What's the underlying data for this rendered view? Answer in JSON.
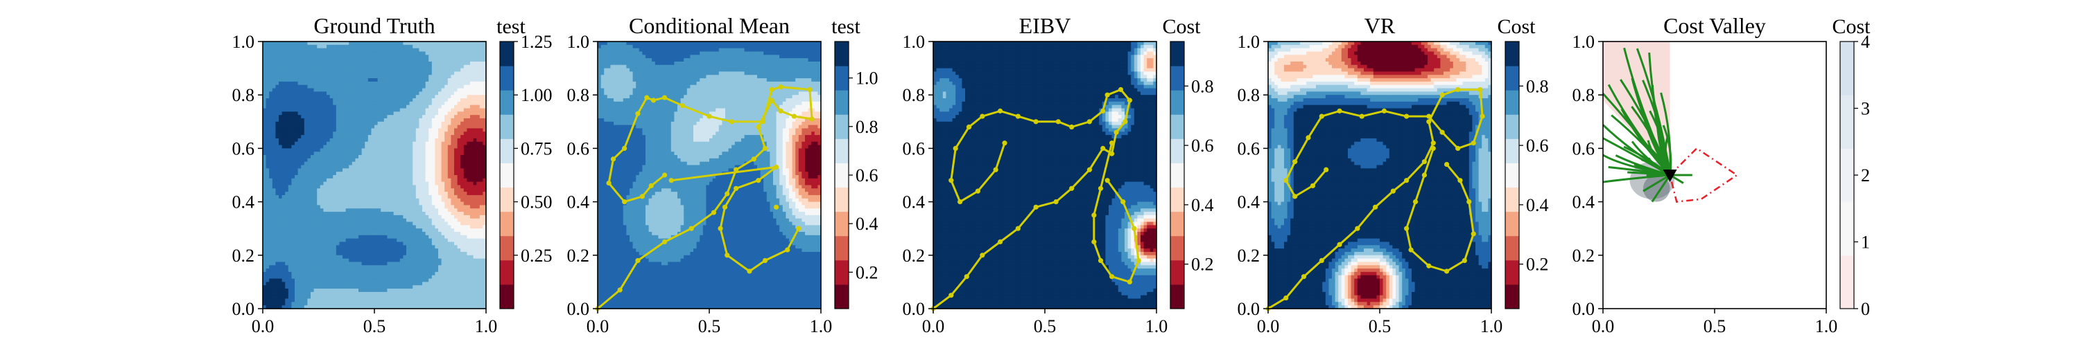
{
  "chart_data": [
    {
      "type": "heatmap",
      "title": "Ground Truth",
      "xlim": [
        0,
        1
      ],
      "ylim": [
        0,
        1
      ],
      "xticks": [
        "0.0",
        "0.5",
        "1.0"
      ],
      "yticks": [
        "0.0",
        "0.2",
        "0.4",
        "0.6",
        "0.8",
        "1.0"
      ],
      "colorbar": {
        "label": "test",
        "range": [
          0.0,
          1.25
        ],
        "ticks": [
          "0.25",
          "0.50",
          "0.75",
          "1.00",
          "1.25"
        ],
        "colors": [
          "#67001f",
          "#b2182b",
          "#d6604d",
          "#f4a582",
          "#fddbc7",
          "#f7f7f7",
          "#d1e5f0",
          "#92c5de",
          "#4393c3",
          "#2166ac",
          "#053061"
        ]
      },
      "field": {
        "base": 0.88,
        "bumps": [
          {
            "x": 0.95,
            "y": 0.55,
            "sx": 0.13,
            "sy": 0.18,
            "a": -0.85
          },
          {
            "x": 0.2,
            "y": 0.68,
            "sx": 0.14,
            "sy": 0.1,
            "a": 0.2
          },
          {
            "x": 0.5,
            "y": 0.22,
            "sx": 0.25,
            "sy": 0.08,
            "a": 0.18
          },
          {
            "x": 0.08,
            "y": 0.55,
            "sx": 0.08,
            "sy": 0.3,
            "a": 0.15
          },
          {
            "x": 0.52,
            "y": 0.86,
            "sx": 0.22,
            "sy": 0.08,
            "a": 0.14
          },
          {
            "x": 0.05,
            "y": 0.05,
            "sx": 0.06,
            "sy": 0.06,
            "a": 0.35
          }
        ]
      },
      "path": []
    },
    {
      "type": "heatmap",
      "title": "Conditional Mean",
      "xlim": [
        0,
        1
      ],
      "ylim": [
        0,
        1
      ],
      "xticks": [
        "0.0",
        "0.5",
        "1.0"
      ],
      "yticks": [
        "0.0",
        "0.2",
        "0.4",
        "0.6",
        "0.8",
        "1.0"
      ],
      "colorbar": {
        "label": "test",
        "range": [
          0.05,
          1.15
        ],
        "ticks": [
          "0.2",
          "0.4",
          "0.6",
          "0.8",
          "1.0"
        ],
        "colors": [
          "#67001f",
          "#b2182b",
          "#d6604d",
          "#f4a582",
          "#fddbc7",
          "#f7f7f7",
          "#d1e5f0",
          "#92c5de",
          "#4393c3",
          "#2166ac",
          "#053061"
        ]
      },
      "field": {
        "base": 1.02,
        "bumps": [
          {
            "x": 0.97,
            "y": 0.55,
            "sx": 0.1,
            "sy": 0.15,
            "a": -0.95
          },
          {
            "x": 0.6,
            "y": 0.78,
            "sx": 0.22,
            "sy": 0.12,
            "a": -0.25
          },
          {
            "x": 0.3,
            "y": 0.35,
            "sx": 0.12,
            "sy": 0.12,
            "a": -0.22
          },
          {
            "x": 0.08,
            "y": 0.85,
            "sx": 0.1,
            "sy": 0.1,
            "a": -0.2
          },
          {
            "x": 0.45,
            "y": 0.62,
            "sx": 0.12,
            "sy": 0.08,
            "a": -0.18
          }
        ]
      },
      "path": [
        [
          0.0,
          0.0
        ],
        [
          0.1,
          0.07
        ],
        [
          0.18,
          0.18
        ],
        [
          0.3,
          0.25
        ],
        [
          0.42,
          0.3
        ],
        [
          0.52,
          0.36
        ],
        [
          0.58,
          0.43
        ],
        [
          0.62,
          0.52
        ],
        [
          0.7,
          0.56
        ],
        [
          0.75,
          0.6
        ],
        [
          0.72,
          0.68
        ],
        [
          0.78,
          0.78
        ],
        [
          0.82,
          0.74
        ],
        [
          0.88,
          0.72
        ],
        [
          0.96,
          0.71
        ],
        [
          0.95,
          0.82
        ],
        [
          0.82,
          0.83
        ],
        [
          0.78,
          0.82
        ],
        [
          0.74,
          0.7
        ],
        [
          0.6,
          0.7
        ],
        [
          0.5,
          0.72
        ],
        [
          0.38,
          0.76
        ],
        [
          0.3,
          0.79
        ],
        [
          0.25,
          0.78
        ],
        [
          0.22,
          0.79
        ],
        [
          0.18,
          0.73
        ],
        [
          0.12,
          0.6
        ],
        [
          0.07,
          0.56
        ],
        [
          0.05,
          0.47
        ],
        [
          0.12,
          0.4
        ],
        [
          0.2,
          0.42
        ],
        [
          0.24,
          0.46
        ],
        [
          0.3,
          0.5
        ],
        [
          0.33,
          0.48
        ],
        [
          0.8,
          0.53
        ],
        [
          0.72,
          0.48
        ],
        [
          0.62,
          0.45
        ],
        [
          0.57,
          0.38
        ],
        [
          0.55,
          0.3
        ],
        [
          0.58,
          0.2
        ],
        [
          0.68,
          0.14
        ],
        [
          0.75,
          0.18
        ],
        [
          0.85,
          0.22
        ],
        [
          0.9,
          0.3
        ],
        [
          0.8,
          0.38
        ]
      ],
      "path_breaks": [
        33,
        44
      ]
    },
    {
      "type": "heatmap",
      "title": "EIBV",
      "xlim": [
        0,
        1
      ],
      "ylim": [
        0,
        1
      ],
      "xticks": [
        "0.0",
        "0.5",
        "1.0"
      ],
      "yticks": [
        "0.0",
        "0.2",
        "0.4",
        "0.6",
        "0.8",
        "1.0"
      ],
      "colorbar": {
        "label": "Cost",
        "range": [
          0.05,
          0.95
        ],
        "ticks": [
          "0.2",
          "0.4",
          "0.6",
          "0.8"
        ],
        "colors": [
          "#67001f",
          "#b2182b",
          "#d6604d",
          "#f4a582",
          "#fddbc7",
          "#f7f7f7",
          "#d1e5f0",
          "#92c5de",
          "#4393c3",
          "#2166ac",
          "#053061"
        ]
      },
      "field": {
        "base": 0.95,
        "bumps": [
          {
            "x": 0.98,
            "y": 0.26,
            "sx": 0.06,
            "sy": 0.06,
            "a": -0.9
          },
          {
            "x": 0.97,
            "y": 0.92,
            "sx": 0.05,
            "sy": 0.06,
            "a": -0.6
          },
          {
            "x": 0.82,
            "y": 0.72,
            "sx": 0.04,
            "sy": 0.04,
            "a": -0.45
          },
          {
            "x": 0.05,
            "y": 0.8,
            "sx": 0.06,
            "sy": 0.07,
            "a": -0.25
          },
          {
            "x": 0.9,
            "y": 0.26,
            "sx": 0.12,
            "sy": 0.2,
            "a": -0.15
          }
        ]
      },
      "path": [
        [
          0.0,
          0.0
        ],
        [
          0.08,
          0.05
        ],
        [
          0.15,
          0.12
        ],
        [
          0.22,
          0.2
        ],
        [
          0.3,
          0.25
        ],
        [
          0.38,
          0.3
        ],
        [
          0.46,
          0.38
        ],
        [
          0.55,
          0.4
        ],
        [
          0.62,
          0.45
        ],
        [
          0.7,
          0.52
        ],
        [
          0.76,
          0.6
        ],
        [
          0.8,
          0.58
        ],
        [
          0.82,
          0.66
        ],
        [
          0.86,
          0.7
        ],
        [
          0.88,
          0.78
        ],
        [
          0.84,
          0.82
        ],
        [
          0.78,
          0.8
        ],
        [
          0.76,
          0.74
        ],
        [
          0.7,
          0.7
        ],
        [
          0.62,
          0.68
        ],
        [
          0.56,
          0.7
        ],
        [
          0.46,
          0.7
        ],
        [
          0.38,
          0.72
        ],
        [
          0.3,
          0.74
        ],
        [
          0.22,
          0.72
        ],
        [
          0.16,
          0.68
        ],
        [
          0.1,
          0.6
        ],
        [
          0.08,
          0.48
        ],
        [
          0.12,
          0.4
        ],
        [
          0.2,
          0.44
        ],
        [
          0.28,
          0.52
        ],
        [
          0.32,
          0.62
        ],
        [
          0.8,
          0.62
        ],
        [
          0.75,
          0.45
        ],
        [
          0.72,
          0.35
        ],
        [
          0.72,
          0.25
        ],
        [
          0.75,
          0.18
        ],
        [
          0.8,
          0.12
        ],
        [
          0.88,
          0.1
        ],
        [
          0.92,
          0.18
        ],
        [
          0.9,
          0.3
        ],
        [
          0.85,
          0.4
        ],
        [
          0.78,
          0.48
        ]
      ],
      "path_breaks": [
        32
      ]
    },
    {
      "type": "heatmap",
      "title": "VR",
      "xlim": [
        0,
        1
      ],
      "ylim": [
        0,
        1
      ],
      "xticks": [
        "0.0",
        "0.5",
        "1.0"
      ],
      "yticks": [
        "0.0",
        "0.2",
        "0.4",
        "0.6",
        "0.8",
        "1.0"
      ],
      "colorbar": {
        "label": "Cost",
        "range": [
          0.05,
          0.95
        ],
        "ticks": [
          "0.2",
          "0.4",
          "0.6",
          "0.8"
        ],
        "colors": [
          "#67001f",
          "#b2182b",
          "#d6604d",
          "#f4a582",
          "#fddbc7",
          "#f7f7f7",
          "#d1e5f0",
          "#92c5de",
          "#4393c3",
          "#2166ac",
          "#053061"
        ]
      },
      "field": {
        "base": 1.0,
        "bumps": [
          {
            "x": 0.45,
            "y": 0.08,
            "sx": 0.1,
            "sy": 0.09,
            "a": -1.0
          },
          {
            "x": 0.52,
            "y": 0.96,
            "sx": 0.18,
            "sy": 0.1,
            "a": -1.05
          },
          {
            "x": 0.1,
            "y": 0.9,
            "sx": 0.14,
            "sy": 0.08,
            "a": -0.55
          },
          {
            "x": 0.85,
            "y": 0.9,
            "sx": 0.16,
            "sy": 0.07,
            "a": -0.5
          },
          {
            "x": 0.05,
            "y": 0.5,
            "sx": 0.05,
            "sy": 0.2,
            "a": -0.35
          },
          {
            "x": 0.97,
            "y": 0.5,
            "sx": 0.05,
            "sy": 0.25,
            "a": -0.35
          },
          {
            "x": 0.45,
            "y": 0.58,
            "sx": 0.1,
            "sy": 0.06,
            "a": -0.2
          }
        ]
      },
      "path": [
        [
          0.0,
          0.0
        ],
        [
          0.08,
          0.04
        ],
        [
          0.16,
          0.12
        ],
        [
          0.24,
          0.18
        ],
        [
          0.32,
          0.24
        ],
        [
          0.4,
          0.3
        ],
        [
          0.48,
          0.38
        ],
        [
          0.56,
          0.44
        ],
        [
          0.62,
          0.48
        ],
        [
          0.7,
          0.55
        ],
        [
          0.74,
          0.62
        ],
        [
          0.72,
          0.7
        ],
        [
          0.78,
          0.8
        ],
        [
          0.85,
          0.82
        ],
        [
          0.95,
          0.82
        ],
        [
          0.96,
          0.72
        ],
        [
          0.92,
          0.62
        ],
        [
          0.85,
          0.6
        ],
        [
          0.78,
          0.66
        ],
        [
          0.72,
          0.72
        ],
        [
          0.62,
          0.72
        ],
        [
          0.52,
          0.74
        ],
        [
          0.42,
          0.72
        ],
        [
          0.32,
          0.74
        ],
        [
          0.24,
          0.72
        ],
        [
          0.18,
          0.64
        ],
        [
          0.12,
          0.55
        ],
        [
          0.08,
          0.48
        ],
        [
          0.12,
          0.42
        ],
        [
          0.2,
          0.46
        ],
        [
          0.26,
          0.52
        ],
        [
          0.74,
          0.6
        ],
        [
          0.7,
          0.5
        ],
        [
          0.66,
          0.4
        ],
        [
          0.62,
          0.3
        ],
        [
          0.64,
          0.22
        ],
        [
          0.72,
          0.16
        ],
        [
          0.8,
          0.14
        ],
        [
          0.88,
          0.18
        ],
        [
          0.92,
          0.28
        ],
        [
          0.9,
          0.4
        ],
        [
          0.86,
          0.48
        ],
        [
          0.8,
          0.54
        ]
      ],
      "path_breaks": [
        31
      ]
    },
    {
      "type": "heatmap",
      "title": "Cost Valley",
      "xlim": [
        0,
        1
      ],
      "ylim": [
        0,
        1
      ],
      "xticks": [
        "0.0",
        "0.5",
        "1.0"
      ],
      "yticks": [
        "0.0",
        "0.2",
        "0.4",
        "0.6",
        "0.8",
        "1.0"
      ],
      "colorbar": {
        "label": "Cost",
        "range": [
          0,
          4
        ],
        "ticks": [
          "0",
          "1",
          "2",
          "3",
          "4"
        ],
        "colors": [
          "#fbe9e9",
          "#f7f7f7",
          "#eef2f7",
          "#e1e9f1",
          "#d6e2ed"
        ]
      },
      "valley": {
        "x": 0.3,
        "y": 0.5
      },
      "polygon": [
        [
          0.3,
          0.5
        ],
        [
          0.42,
          0.6
        ],
        [
          0.6,
          0.5
        ],
        [
          0.44,
          0.41
        ],
        [
          0.33,
          0.4
        ],
        [
          0.3,
          0.5
        ]
      ],
      "path": []
    }
  ]
}
